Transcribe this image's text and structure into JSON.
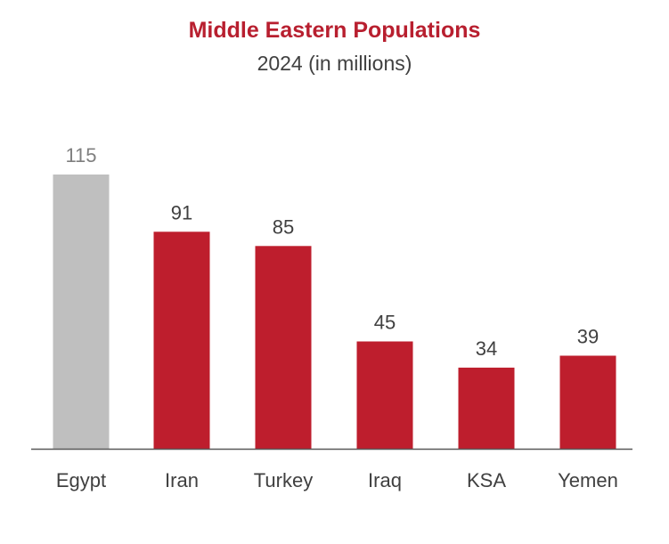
{
  "chart_data": {
    "type": "bar",
    "title": "Middle Eastern Populations",
    "subtitle": "2024 (in millions)",
    "categories": [
      "Egypt",
      "Iran",
      "Turkey",
      "Iraq",
      "KSA",
      "Yemen"
    ],
    "values": [
      115,
      91,
      85,
      45,
      34,
      39
    ],
    "data_labels": [
      "115",
      "91",
      "85",
      "45",
      "34",
      "39"
    ],
    "xlabel": "",
    "ylabel": "",
    "ylim": [
      0,
      115
    ],
    "grid": false,
    "legend": "none",
    "colors": {
      "highlight": "#bfbfbf",
      "bar": "#be1e2d",
      "highlight_label": "#7f7f7f",
      "label": "#404040",
      "axis": "#595959",
      "title": "#b81f2f"
    }
  }
}
